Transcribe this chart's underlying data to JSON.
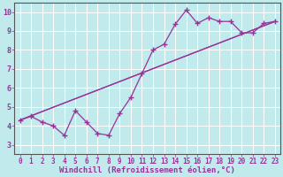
{
  "xlabel": "Windchill (Refroidissement éolien,°C)",
  "background_color": "#c0eaec",
  "line_color": "#993399",
  "xlim": [
    -0.5,
    23.5
  ],
  "ylim": [
    2.5,
    10.5
  ],
  "xticks": [
    0,
    1,
    2,
    3,
    4,
    5,
    6,
    7,
    8,
    9,
    10,
    11,
    12,
    13,
    14,
    15,
    16,
    17,
    18,
    19,
    20,
    21,
    22,
    23
  ],
  "yticks": [
    3,
    4,
    5,
    6,
    7,
    8,
    9,
    10
  ],
  "series1_x": [
    0,
    1,
    2,
    3,
    4,
    5,
    6,
    7,
    8,
    9,
    10,
    11,
    12,
    13,
    14,
    15,
    16,
    17,
    18,
    19,
    20,
    21,
    22,
    23
  ],
  "series1_y": [
    4.3,
    4.5,
    4.2,
    4.0,
    3.5,
    4.8,
    4.2,
    3.6,
    3.5,
    4.65,
    5.5,
    6.75,
    8.0,
    8.3,
    9.35,
    10.1,
    9.4,
    9.7,
    9.5,
    9.5,
    8.9,
    8.9,
    9.4,
    9.5
  ],
  "trend1_x": [
    0,
    23
  ],
  "trend1_y": [
    4.3,
    9.5
  ],
  "trend2_x": [
    0,
    23
  ],
  "trend2_y": [
    4.3,
    9.5
  ]
}
